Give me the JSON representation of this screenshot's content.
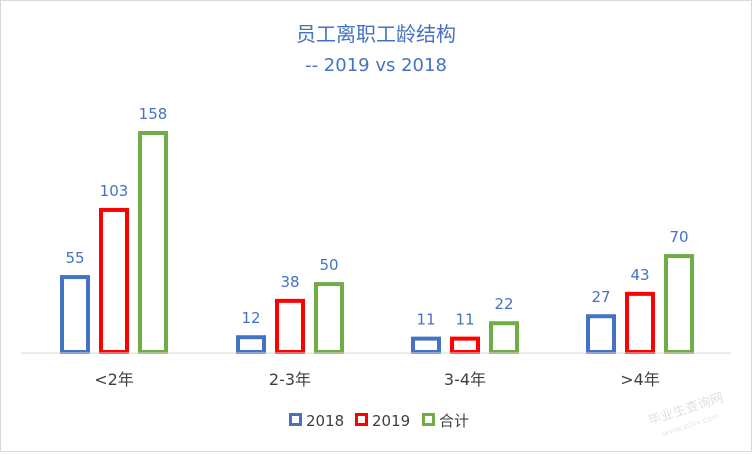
{
  "chart_data": {
    "type": "bar",
    "title": "员工离职工龄结构",
    "subtitle": "-- 2019 vs 2018",
    "categories": [
      "<2年",
      "2-3年",
      "3-4年",
      ">4年"
    ],
    "series": [
      {
        "name": "2018",
        "values": [
          55,
          12,
          11,
          27
        ]
      },
      {
        "name": "2019",
        "values": [
          103,
          38,
          11,
          43
        ]
      },
      {
        "name": "合计",
        "values": [
          158,
          50,
          22,
          70
        ]
      }
    ],
    "ylim": [
      0,
      158
    ],
    "grid": false,
    "legend_position": "bottom",
    "xlabel": "",
    "ylabel": ""
  },
  "colors": {
    "title": "#4472C4",
    "label": "#4472C4",
    "axis_text": "#404040",
    "axis_line": "#d9d9d9",
    "series": [
      "#4472C4",
      "#FF0000",
      "#70AD47"
    ]
  },
  "watermark": "毕业生查询网 www.s0vv.com"
}
